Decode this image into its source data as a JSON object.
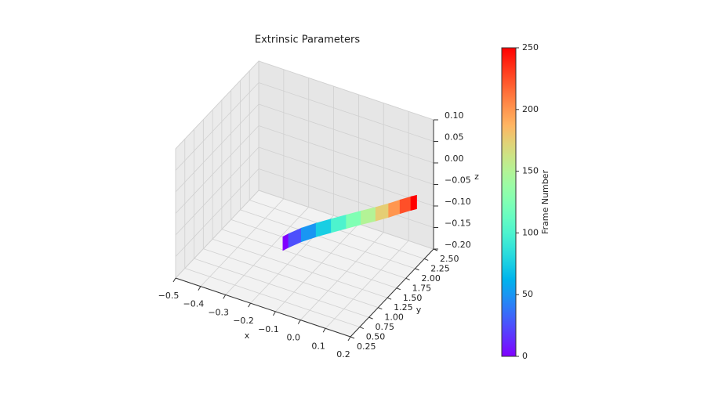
{
  "chart_data": {
    "type": "trajectory3d",
    "title": "Extrinsic Parameters",
    "xlabel": "x",
    "ylabel": "y",
    "zlabel": "z",
    "colorbar_label": "Frame Number",
    "colormap": "rainbow",
    "xlim": [
      -0.5,
      0.2
    ],
    "xticks": [
      {
        "value": -0.5,
        "label": "−0.5"
      },
      {
        "value": -0.4,
        "label": "−0.4"
      },
      {
        "value": -0.3,
        "label": "−0.3"
      },
      {
        "value": -0.2,
        "label": "−0.2"
      },
      {
        "value": -0.1,
        "label": "−0.1"
      },
      {
        "value": 0,
        "label": "0.0"
      },
      0.1,
      0.2
    ],
    "ylim": [
      0.25,
      2.5
    ],
    "yticks": [
      0.25,
      {
        "value": 0.5,
        "label": "0.50"
      },
      0.75,
      {
        "value": 1,
        "label": "1.00"
      },
      1.25,
      {
        "value": 1.5,
        "label": "1.50"
      },
      1.75,
      {
        "value": 2,
        "label": "2.00"
      },
      2.25,
      {
        "value": 2.5,
        "label": "2.50"
      }
    ],
    "zlim": [
      -0.2,
      0.1
    ],
    "zticks": [
      {
        "value": -0.2,
        "label": "−0.20"
      },
      {
        "value": -0.15,
        "label": "−0.15"
      },
      {
        "value": -0.1,
        "label": "−0.10"
      },
      {
        "value": -0.05,
        "label": "−0.05"
      },
      {
        "value": 0,
        "label": "0.00"
      },
      0.05,
      {
        "value": 0.1,
        "label": "0.10"
      }
    ],
    "clim": [
      0,
      250
    ],
    "cticks": [
      0,
      50,
      100,
      150,
      200,
      250
    ],
    "frames": [
      0,
      25,
      50,
      75,
      100,
      125,
      150,
      175,
      200,
      225,
      250
    ],
    "x": [
      -0.18,
      -0.15,
      -0.11,
      -0.07,
      -0.03,
      0.01,
      0.05,
      0.09,
      0.12,
      0.15,
      0.18
    ],
    "y": [
      1.0,
      1.1,
      1.22,
      1.36,
      1.5,
      1.63,
      1.76,
      1.88,
      1.99,
      2.09,
      2.17
    ],
    "z": [
      -0.11,
      -0.1,
      -0.09,
      -0.085,
      -0.08,
      -0.075,
      -0.07,
      -0.065,
      -0.06,
      -0.055,
      -0.05
    ],
    "grid": true
  }
}
